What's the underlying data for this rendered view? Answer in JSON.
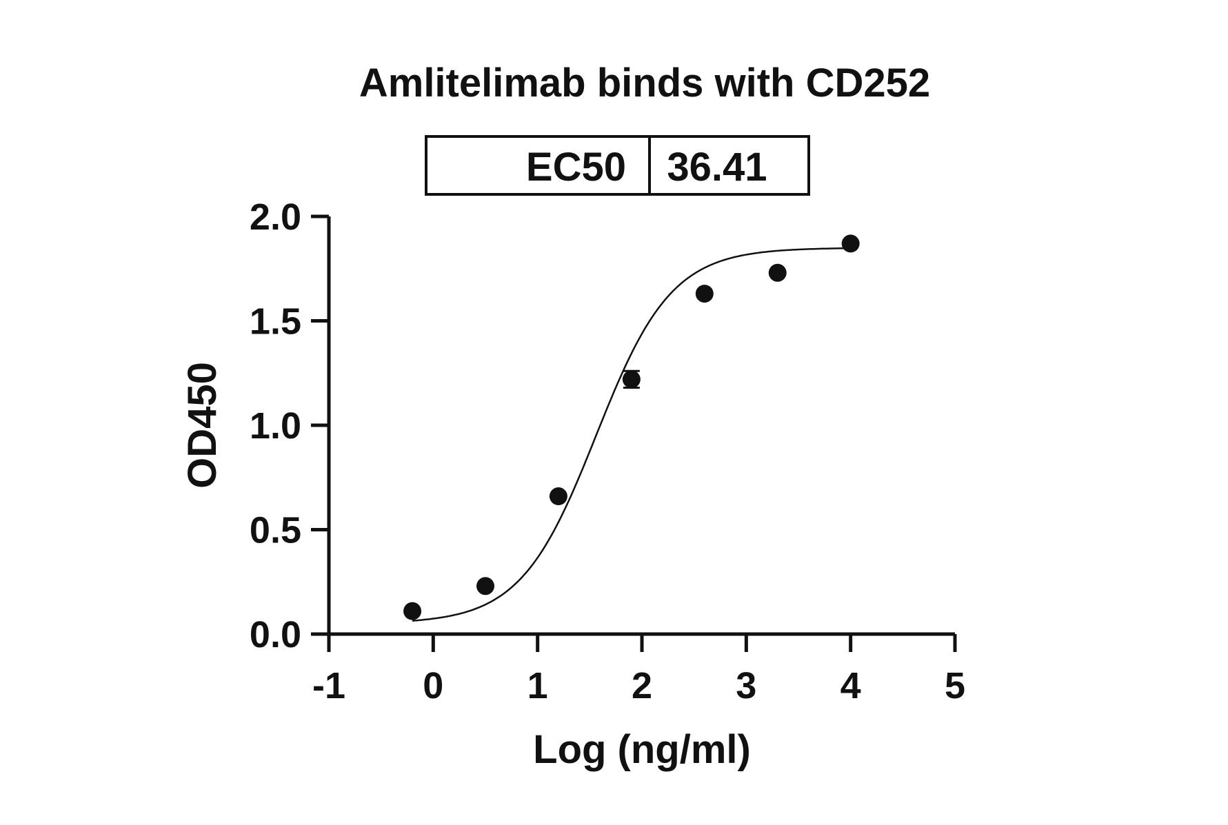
{
  "chart_data": {
    "type": "scatter",
    "title": "Amlitelimab binds with CD252",
    "xlabel": "Log (ng/ml)",
    "ylabel": "OD450",
    "xlim": [
      -1,
      5
    ],
    "ylim": [
      0,
      2
    ],
    "xticks": [
      "-1",
      "0",
      "1",
      "2",
      "3",
      "4",
      "5"
    ],
    "yticks": [
      "0.0",
      "0.5",
      "1.0",
      "1.5",
      "2.0"
    ],
    "grid": false,
    "ec50_table": {
      "label": "EC50",
      "value": "36.41"
    },
    "series": [
      {
        "points": [
          {
            "x": -0.2,
            "y": 0.11
          },
          {
            "x": 0.5,
            "y": 0.23
          },
          {
            "x": 1.2,
            "y": 0.66
          },
          {
            "x": 1.9,
            "y": 1.22,
            "error": 0.04
          },
          {
            "x": 2.6,
            "y": 1.63
          },
          {
            "x": 3.3,
            "y": 1.73
          },
          {
            "x": 4.0,
            "y": 1.87
          }
        ],
        "fit": {
          "model": "4PL",
          "bottom": 0.05,
          "top": 1.85,
          "log_ec50": 1.56,
          "hill": 1.2
        }
      }
    ],
    "colors": {
      "marker": "#111111",
      "line": "#111111"
    }
  }
}
